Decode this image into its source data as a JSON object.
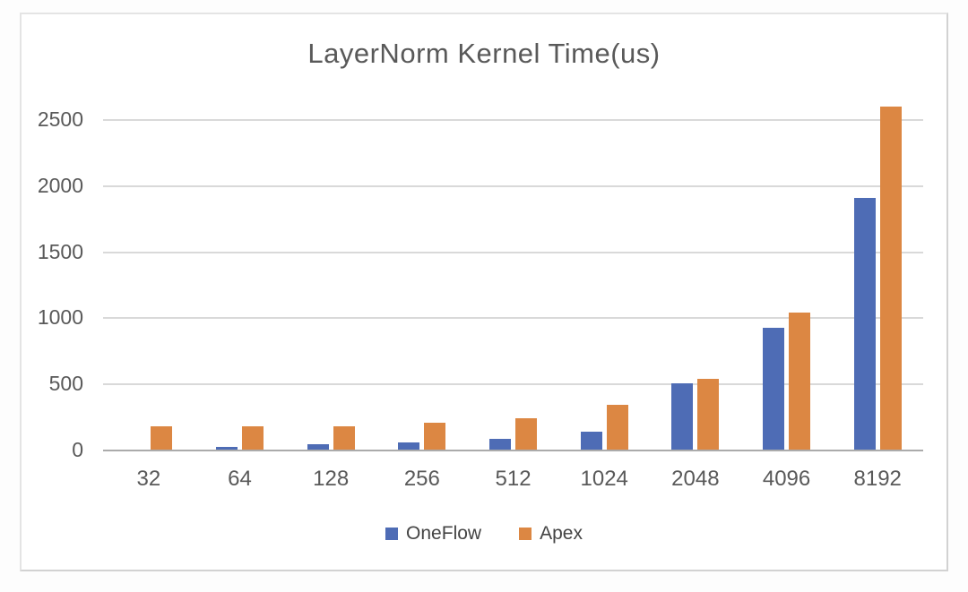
{
  "page": {
    "background": "#fdfdfd"
  },
  "card": {
    "background": "#ffffff",
    "border_color": "#d9d9d9"
  },
  "chart_data": {
    "type": "bar",
    "title": "LayerNorm Kernel Time(us)",
    "categories": [
      "32",
      "64",
      "128",
      "256",
      "512",
      "1024",
      "2048",
      "4096",
      "8192"
    ],
    "series": [
      {
        "name": "OneFlow",
        "color": "#4e6cb5",
        "values": [
          5,
          25,
          45,
          60,
          85,
          145,
          510,
          930,
          1910
        ]
      },
      {
        "name": "Apex",
        "color": "#dc8743",
        "values": [
          180,
          185,
          185,
          210,
          245,
          345,
          545,
          1040,
          2600
        ]
      }
    ],
    "xlabel": "",
    "ylabel": "",
    "ylim": [
      0,
      2500
    ],
    "y_ticks": [
      0,
      500,
      1000,
      1500,
      2000,
      2500
    ],
    "grid": true,
    "legend_position": "bottom",
    "text_color": "#595959",
    "gridline_color": "#d9d9d9",
    "axisline_color": "#ababab"
  }
}
